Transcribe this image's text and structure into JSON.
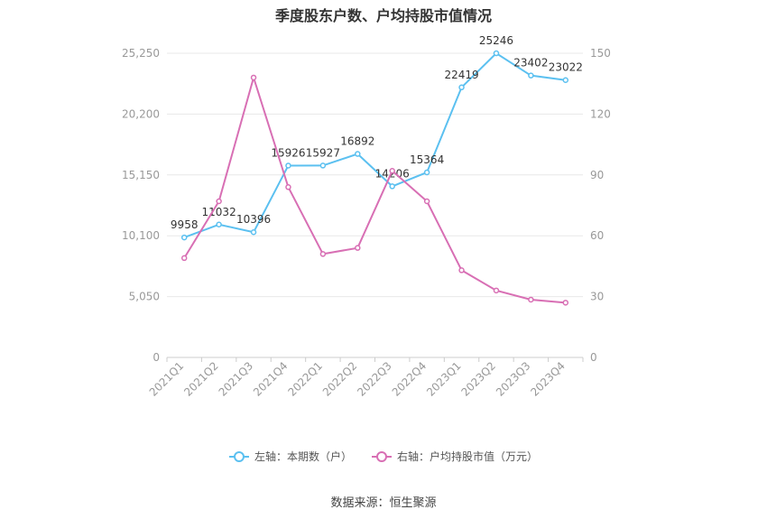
{
  "chart_data": {
    "type": "line",
    "title": "季度股东户数、户均持股市值情况",
    "categories": [
      "2021Q1",
      "2021Q2",
      "2021Q3",
      "2021Q4",
      "2022Q1",
      "2022Q2",
      "2022Q3",
      "2022Q4",
      "2023Q1",
      "2023Q2",
      "2023Q3",
      "2023Q4"
    ],
    "left_axis": {
      "ticks": [
        "0",
        "5,050",
        "10,100",
        "15,150",
        "20,200",
        "25,250"
      ],
      "min": 0,
      "max": 25250
    },
    "right_axis": {
      "ticks": [
        "0",
        "30",
        "60",
        "90",
        "120",
        "150"
      ],
      "min": 0,
      "max": 150
    },
    "series": [
      {
        "name": "左轴：本期数（户）",
        "axis": "left",
        "color": "#5bc0f0",
        "values": [
          9958,
          11032,
          10396,
          15926,
          15927,
          16892,
          14206,
          15364,
          22419,
          25246,
          23402,
          23022
        ],
        "labels": [
          "9958",
          "11032",
          "10396",
          "15926",
          "15927",
          "16892",
          "14206",
          "15364",
          "22419",
          "25246",
          "23402",
          "23022"
        ]
      },
      {
        "name": "右轴：户均持股市值（万元）",
        "axis": "right",
        "color": "#d86fb4",
        "values": [
          49,
          77,
          138,
          84,
          51,
          54,
          92,
          77,
          43,
          33,
          28.5,
          27
        ]
      }
    ],
    "grid": true,
    "legend_position": "bottom"
  },
  "source_text": "数据来源：恒生聚源"
}
